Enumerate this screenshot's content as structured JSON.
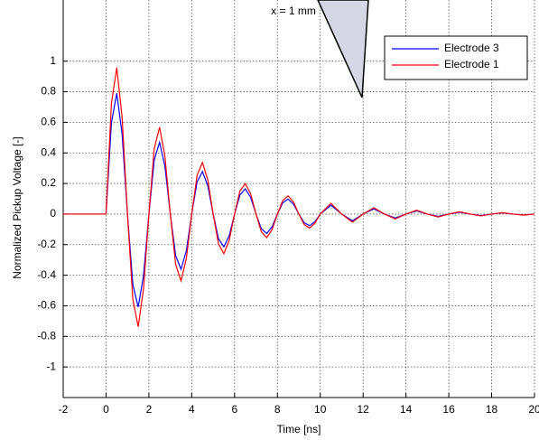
{
  "chart_data": {
    "type": "line",
    "annotation": "x = 1 mm",
    "xlabel": "Time   [ns]",
    "ylabel": "Normalized Pickup Voltage    [-]",
    "x": [
      -2,
      0,
      0.25,
      0.5,
      0.75,
      1,
      1.25,
      1.5,
      1.75,
      2,
      2.25,
      2.5,
      2.75,
      3,
      3.25,
      3.5,
      3.75,
      4,
      4.25,
      4.5,
      4.75,
      5,
      5.25,
      5.5,
      5.75,
      6,
      6.25,
      6.5,
      6.75,
      7,
      7.25,
      7.5,
      7.75,
      8,
      8.25,
      8.5,
      8.75,
      9,
      9.25,
      9.5,
      9.75,
      10,
      10.5,
      11,
      11.5,
      12,
      12.5,
      13,
      13.5,
      14,
      14.5,
      15,
      15.5,
      16,
      16.5,
      17,
      17.5,
      18,
      18.5,
      19,
      19.5,
      20
    ],
    "series": [
      {
        "name": "Electrode 3",
        "color": "#0000ff",
        "values": [
          0,
          0,
          0.596,
          0.79,
          0.523,
          0,
          -0.459,
          -0.608,
          -0.403,
          0,
          0.354,
          0.469,
          0.311,
          0,
          -0.272,
          -0.361,
          -0.239,
          0,
          0.21,
          0.278,
          0.185,
          0,
          -0.162,
          -0.214,
          -0.142,
          0,
          0.125,
          0.165,
          0.109,
          0,
          -0.096,
          -0.127,
          -0.084,
          0,
          0.074,
          0.098,
          0.065,
          0,
          -0.057,
          -0.076,
          -0.05,
          0,
          0.058,
          0,
          -0.044,
          0,
          0.034,
          0,
          -0.026,
          0,
          0.021,
          0,
          -0.015,
          0,
          0.012,
          0,
          -0.01,
          0,
          0.008,
          0,
          -0.006,
          0
        ]
      },
      {
        "name": "Electrode 1",
        "color": "#ff0000",
        "values": [
          0,
          0,
          0.722,
          0.957,
          0.633,
          0,
          -0.556,
          -0.737,
          -0.488,
          0,
          0.428,
          0.568,
          0.376,
          0,
          -0.33,
          -0.437,
          -0.29,
          0,
          0.254,
          0.337,
          0.223,
          0,
          -0.196,
          -0.259,
          -0.172,
          0,
          0.151,
          0.199,
          0.133,
          0,
          -0.116,
          -0.154,
          -0.102,
          0,
          0.089,
          0.119,
          0.079,
          0,
          -0.069,
          -0.092,
          -0.06,
          0,
          0.07,
          0,
          -0.053,
          0,
          0.041,
          0,
          -0.032,
          0,
          0.025,
          0,
          -0.019,
          0,
          0.015,
          0,
          -0.012,
          0,
          0.009,
          0,
          -0.007,
          0
        ]
      }
    ],
    "xlim": [
      -2,
      20
    ],
    "xticks": [
      -2,
      0,
      2,
      4,
      6,
      8,
      10,
      12,
      14,
      16,
      18,
      20
    ],
    "ylim": [
      -1.2,
      1.4
    ],
    "yticks": [
      -1,
      -0.8,
      -0.6,
      -0.4,
      -0.2,
      0,
      0.2,
      0.4,
      0.6,
      0.8,
      1
    ],
    "grid": true,
    "legend": "upper right"
  }
}
